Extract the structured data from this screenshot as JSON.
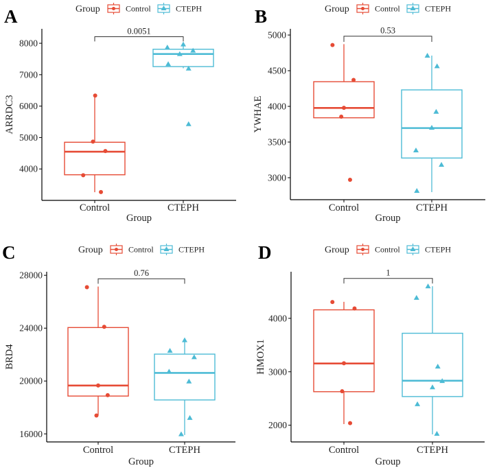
{
  "colors": {
    "Control": "#E64B35",
    "CTEPH": "#4DBBD5",
    "axis": "#000000",
    "bracket": "#333333"
  },
  "chart_data": [
    {
      "type": "box",
      "panel_label": "A",
      "title": "",
      "xlabel": "Group",
      "ylabel": "ARRDC3",
      "categories": [
        "Control",
        "CTEPH"
      ],
      "ylim": [
        3000,
        8460
      ],
      "yticks": [
        4000,
        5000,
        6000,
        7000,
        8000
      ],
      "legend": {
        "title": "Group",
        "entries": [
          "Control",
          "CTEPH"
        ],
        "placement": "top"
      },
      "pvalue": {
        "label": "0.0051",
        "y": 8210,
        "leg_end": 8060
      },
      "series": [
        {
          "name": "Control",
          "box": {
            "low": 3260,
            "q1": 3815,
            "median": 4550,
            "q3": 4850,
            "high": 6335
          },
          "points": [
            6335,
            4870,
            4570,
            3800,
            3265
          ],
          "jitter": [
            0.005,
            -0.02,
            0.12,
            -0.13,
            0.07
          ]
        },
        {
          "name": "CTEPH",
          "box": {
            "low": 7205,
            "q1": 7258,
            "median": 7658,
            "q3": 7810,
            "high": 7965
          },
          "points": [
            7870,
            7965,
            7770,
            7660,
            7340,
            7200,
            5430
          ],
          "jitter": [
            -0.18,
            0,
            0.11,
            -0.04,
            -0.17,
            0.06,
            0.06
          ]
        }
      ]
    },
    {
      "type": "box",
      "panel_label": "B",
      "title": "",
      "xlabel": "Group",
      "ylabel": "YWHAE",
      "categories": [
        "Control",
        "CTEPH"
      ],
      "ylim": [
        2692,
        5087
      ],
      "yticks": [
        3000,
        3500,
        4000,
        4500,
        5000
      ],
      "legend": {
        "title": "Group",
        "entries": [
          "Control",
          "CTEPH"
        ],
        "placement": "top"
      },
      "pvalue": {
        "label": "0.53",
        "y": 4984,
        "leg_end": 4904
      },
      "series": [
        {
          "name": "Control",
          "box": {
            "low": 3840,
            "q1": 3840,
            "median": 3978,
            "q3": 4346,
            "high": 4872
          },
          "points": [
            4860,
            4370,
            3980,
            3856,
            2971
          ],
          "jitter": [
            -0.13,
            0.11,
            0,
            -0.03,
            0.07
          ]
        },
        {
          "name": "CTEPH",
          "box": {
            "low": 2798,
            "q1": 3276,
            "median": 3696,
            "q3": 4231,
            "high": 4712
          },
          "points": [
            4712,
            4564,
            3926,
            3702,
            3385,
            3183,
            2817
          ],
          "jitter": [
            -0.05,
            0.06,
            0.05,
            0,
            -0.18,
            0.11,
            -0.17
          ]
        }
      ]
    },
    {
      "type": "box",
      "panel_label": "C",
      "title": "",
      "xlabel": "Group",
      "ylabel": "BRD4",
      "categories": [
        "Control",
        "CTEPH"
      ],
      "ylim": [
        15390,
        28270
      ],
      "yticks": [
        16000,
        20000,
        24000,
        28000
      ],
      "legend": {
        "title": "Group",
        "entries": [
          "Control",
          "CTEPH"
        ],
        "placement": "top"
      },
      "pvalue": {
        "label": "0.76",
        "y": 27740,
        "leg_end": 27360
      },
      "series": [
        {
          "name": "Control",
          "box": {
            "low": 17390,
            "q1": 18862,
            "median": 19660,
            "q3": 24047,
            "high": 27150
          },
          "points": [
            27100,
            24100,
            19660,
            18930,
            17390
          ],
          "jitter": [
            -0.13,
            0.07,
            0,
            0.11,
            -0.02
          ]
        },
        {
          "name": "CTEPH",
          "box": {
            "low": 15914,
            "q1": 18567,
            "median": 20613,
            "q3": 22035,
            "high": 23093
          },
          "points": [
            23093,
            22295,
            21810,
            20717,
            19972,
            17215,
            15983
          ],
          "jitter": [
            0,
            -0.17,
            0.11,
            -0.18,
            0.05,
            0.06,
            -0.04
          ]
        }
      ]
    },
    {
      "type": "box",
      "panel_label": "D",
      "title": "",
      "xlabel": "Group",
      "ylabel": "HMOX1",
      "categories": [
        "Control",
        "CTEPH"
      ],
      "ylim": [
        1687,
        4872
      ],
      "yticks": [
        2000,
        3000,
        4000
      ],
      "legend": {
        "title": "Group",
        "entries": [
          "Control",
          "CTEPH"
        ],
        "placement": "top"
      },
      "pvalue": {
        "label": "1",
        "y": 4747,
        "leg_end": 4652
      },
      "series": [
        {
          "name": "Control",
          "box": {
            "low": 2021,
            "q1": 2627,
            "median": 3155,
            "q3": 4159,
            "high": 4309
          },
          "points": [
            4305,
            4185,
            3159,
            2635,
            2039
          ],
          "jitter": [
            -0.13,
            0.12,
            0,
            -0.02,
            0.07
          ]
        },
        {
          "name": "CTEPH",
          "box": {
            "low": 1828,
            "q1": 2536,
            "median": 2833,
            "q3": 3721,
            "high": 4601
          },
          "points": [
            4601,
            4386,
            3099,
            2828,
            2712,
            2395,
            1841
          ],
          "jitter": [
            -0.05,
            -0.18,
            0.06,
            0.11,
            0,
            -0.17,
            0.05
          ]
        }
      ]
    }
  ]
}
